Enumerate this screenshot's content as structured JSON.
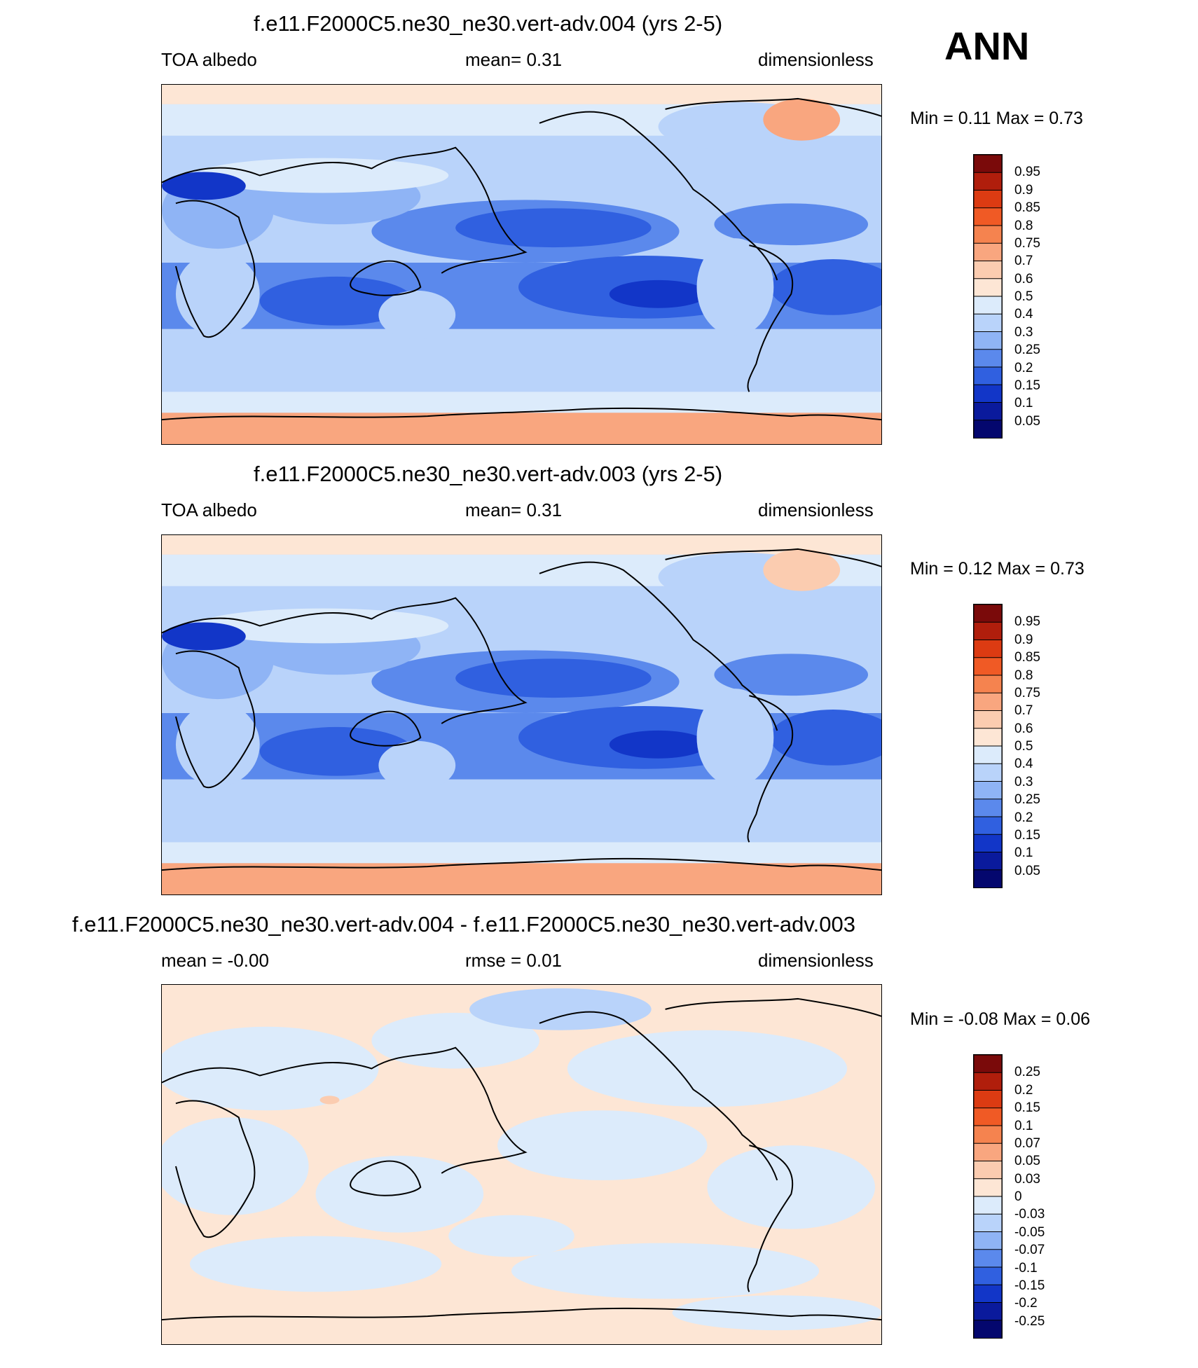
{
  "season_label": "ANN",
  "panels": [
    {
      "title": "f.e11.F2000C5.ne30_ne30.vert-adv.004 (yrs 2-5)",
      "left_label": "TOA albedo",
      "center_label": "mean=   0.31",
      "right_label": "dimensionless",
      "minmax": "Min =   0.11 Max =   0.73",
      "colorbar_ticks": [
        "0.95",
        "0.9",
        "0.85",
        "0.8",
        "0.75",
        "0.7",
        "0.6",
        "0.5",
        "0.4",
        "0.3",
        "0.25",
        "0.2",
        "0.15",
        "0.1",
        "0.05"
      ]
    },
    {
      "title": "f.e11.F2000C5.ne30_ne30.vert-adv.003 (yrs 2-5)",
      "left_label": "TOA albedo",
      "center_label": "mean=   0.31",
      "right_label": "dimensionless",
      "minmax": "Min =   0.12 Max =   0.73",
      "colorbar_ticks": [
        "0.95",
        "0.9",
        "0.85",
        "0.8",
        "0.75",
        "0.7",
        "0.6",
        "0.5",
        "0.4",
        "0.3",
        "0.25",
        "0.2",
        "0.15",
        "0.1",
        "0.05"
      ]
    },
    {
      "title": "f.e11.F2000C5.ne30_ne30.vert-adv.004 - f.e11.F2000C5.ne30_ne30.vert-adv.003",
      "left_label": "mean =  -0.00",
      "center_label": "rmse =   0.01",
      "right_label": "dimensionless",
      "minmax": "Min =  -0.08 Max =   0.06",
      "colorbar_ticks": [
        "0.25",
        "0.2",
        "0.15",
        "0.1",
        "0.07",
        "0.05",
        "0.03",
        "0",
        "-0.03",
        "-0.05",
        "-0.07",
        "-0.1",
        "-0.15",
        "-0.2",
        "-0.25"
      ]
    }
  ],
  "colorbar_colors": [
    "#7a0a0a",
    "#b01e0c",
    "#dc3b12",
    "#f05a25",
    "#f5834f",
    "#f9a67f",
    "#fbccb0",
    "#fde6d5",
    "#dcebfb",
    "#b9d3fa",
    "#8fb4f5",
    "#5b89ec",
    "#3060e0",
    "#1236c8",
    "#0a1a9c",
    "#04076e"
  ],
  "chart_data": [
    {
      "type": "heatmap",
      "title": "f.e11.F2000C5.ne30_ne30.vert-adv.004 (yrs 2-5)",
      "variable": "TOA albedo",
      "units": "dimensionless",
      "mean": 0.31,
      "min": 0.11,
      "max": 0.73,
      "levels": [
        0.05,
        0.1,
        0.15,
        0.2,
        0.25,
        0.3,
        0.4,
        0.5,
        0.6,
        0.7,
        0.75,
        0.8,
        0.85,
        0.9,
        0.95
      ],
      "projection": "cylindrical equidistant, global, centered on Pacific"
    },
    {
      "type": "heatmap",
      "title": "f.e11.F2000C5.ne30_ne30.vert-adv.003 (yrs 2-5)",
      "variable": "TOA albedo",
      "units": "dimensionless",
      "mean": 0.31,
      "min": 0.12,
      "max": 0.73,
      "levels": [
        0.05,
        0.1,
        0.15,
        0.2,
        0.25,
        0.3,
        0.4,
        0.5,
        0.6,
        0.7,
        0.75,
        0.8,
        0.85,
        0.9,
        0.95
      ],
      "projection": "cylindrical equidistant, global, centered on Pacific"
    },
    {
      "type": "heatmap",
      "title": "f.e11.F2000C5.ne30_ne30.vert-adv.004 - f.e11.F2000C5.ne30_ne30.vert-adv.003",
      "units": "dimensionless",
      "mean": -0.0,
      "rmse": 0.01,
      "min": -0.08,
      "max": 0.06,
      "levels": [
        -0.25,
        -0.2,
        -0.15,
        -0.1,
        -0.07,
        -0.05,
        -0.03,
        0,
        0.03,
        0.05,
        0.07,
        0.1,
        0.15,
        0.2,
        0.25
      ],
      "projection": "cylindrical equidistant, global, centered on Pacific"
    }
  ]
}
